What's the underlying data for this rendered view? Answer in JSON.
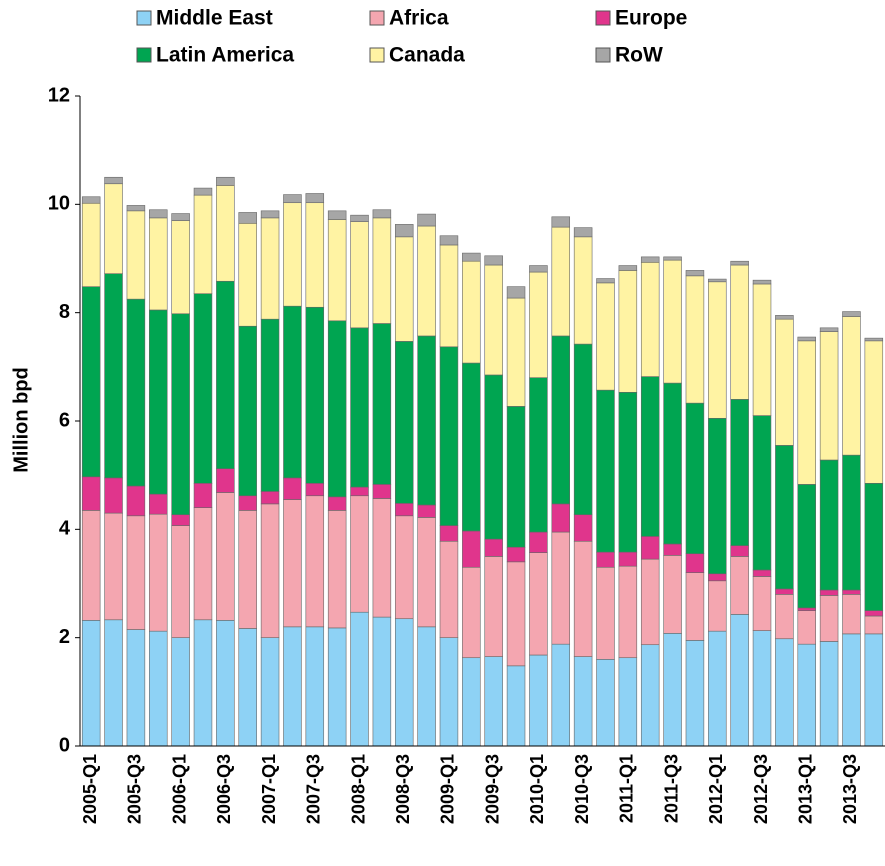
{
  "chart_data": {
    "type": "stacked-bar",
    "y_label": "Million bpd",
    "legend": "top",
    "ylim": [
      0,
      12
    ],
    "yticks": [
      0,
      2,
      4,
      6,
      8,
      10,
      12
    ],
    "categories": [
      "2005-Q1",
      null,
      "2005-Q3",
      null,
      "2006-Q1",
      null,
      "2006-Q3",
      null,
      "2007-Q1",
      null,
      "2007-Q3",
      null,
      "2008-Q1",
      null,
      "2008-Q3",
      null,
      "2009-Q1",
      null,
      "2009-Q3",
      null,
      "2010-Q1",
      null,
      "2010-Q3",
      null,
      "2011-Q1",
      null,
      "2011-Q3",
      null,
      "2012-Q1",
      null,
      "2012-Q3",
      null,
      "2013-Q1",
      null,
      "2013-Q3",
      null
    ],
    "series": [
      {
        "name": "Middle East",
        "color": "#8ed2f5",
        "values": [
          2.32,
          2.33,
          2.15,
          2.12,
          2.0,
          2.33,
          2.32,
          2.17,
          2.0,
          2.2,
          2.2,
          2.18,
          2.47,
          2.38,
          2.35,
          2.2,
          2.0,
          1.63,
          1.65,
          1.48,
          1.68,
          1.88,
          1.65,
          1.6,
          1.63,
          1.87,
          2.08,
          1.95,
          2.12,
          2.43,
          2.13,
          1.98,
          1.88,
          1.93,
          2.07,
          2.07
        ]
      },
      {
        "name": "Africa",
        "color": "#f4a6b0",
        "values": [
          2.03,
          1.97,
          2.1,
          2.16,
          2.07,
          2.07,
          2.36,
          2.18,
          2.47,
          2.35,
          2.42,
          2.17,
          2.15,
          2.19,
          1.9,
          2.02,
          1.78,
          1.67,
          1.85,
          1.92,
          1.89,
          2.07,
          2.13,
          1.7,
          1.69,
          1.58,
          1.44,
          1.25,
          0.93,
          1.07,
          1.0,
          0.82,
          0.62,
          0.85,
          0.73,
          0.33
        ]
      },
      {
        "name": "Europe",
        "color": "#e0358c",
        "values": [
          0.62,
          0.65,
          0.55,
          0.37,
          0.2,
          0.45,
          0.44,
          0.27,
          0.23,
          0.4,
          0.23,
          0.25,
          0.16,
          0.26,
          0.23,
          0.23,
          0.29,
          0.67,
          0.32,
          0.27,
          0.38,
          0.52,
          0.49,
          0.28,
          0.26,
          0.42,
          0.21,
          0.35,
          0.13,
          0.2,
          0.12,
          0.1,
          0.05,
          0.1,
          0.08,
          0.1
        ]
      },
      {
        "name": "Latin America",
        "color": "#00a551",
        "values": [
          3.51,
          3.77,
          3.45,
          3.4,
          3.71,
          3.5,
          3.46,
          3.13,
          3.18,
          3.17,
          3.25,
          3.25,
          2.94,
          2.97,
          2.99,
          3.12,
          3.3,
          3.1,
          3.03,
          2.6,
          2.85,
          3.1,
          3.15,
          2.99,
          2.95,
          2.95,
          2.97,
          2.78,
          2.87,
          2.7,
          2.85,
          2.65,
          2.28,
          2.4,
          2.49,
          2.35
        ]
      },
      {
        "name": "Canada",
        "color": "#fff3a3",
        "values": [
          1.54,
          1.66,
          1.63,
          1.7,
          1.72,
          1.82,
          1.77,
          1.9,
          1.87,
          1.91,
          1.93,
          1.87,
          1.96,
          1.95,
          1.93,
          2.03,
          1.88,
          1.88,
          2.03,
          2.0,
          1.95,
          2.01,
          1.98,
          1.98,
          2.25,
          2.11,
          2.27,
          2.35,
          2.52,
          2.48,
          2.43,
          2.33,
          2.65,
          2.37,
          2.56,
          2.63
        ]
      },
      {
        "name": "RoW",
        "color": "#a6a6a6",
        "values": [
          0.12,
          0.12,
          0.1,
          0.15,
          0.13,
          0.13,
          0.15,
          0.2,
          0.13,
          0.15,
          0.17,
          0.16,
          0.12,
          0.15,
          0.23,
          0.22,
          0.17,
          0.15,
          0.17,
          0.21,
          0.12,
          0.19,
          0.17,
          0.08,
          0.09,
          0.1,
          0.06,
          0.1,
          0.05,
          0.07,
          0.07,
          0.07,
          0.07,
          0.07,
          0.09,
          0.05
        ]
      }
    ]
  }
}
